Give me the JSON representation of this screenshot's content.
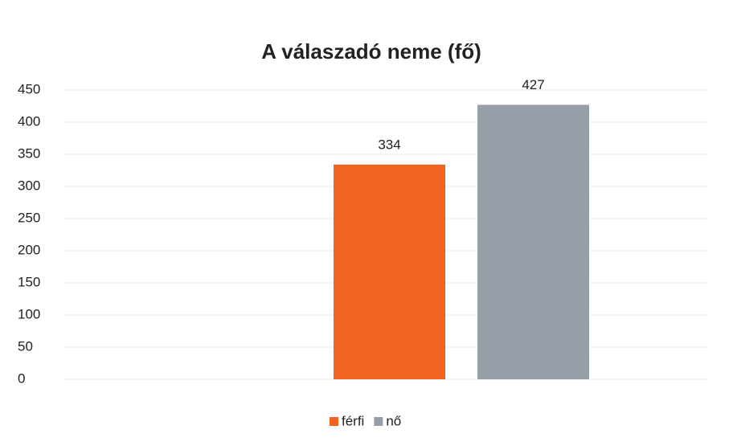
{
  "chart_data": {
    "type": "bar",
    "title": "A válaszadó neme (fő)",
    "categories": [
      null
    ],
    "series": [
      {
        "name": "férfi",
        "color": "#f26322",
        "values": [
          334
        ]
      },
      {
        "name": "nő",
        "color": "#969fa7",
        "values": [
          427
        ]
      }
    ],
    "ylim": [
      0,
      450
    ],
    "yticks": [
      0,
      50,
      100,
      150,
      200,
      250,
      300,
      350,
      400,
      450
    ],
    "grid": true,
    "legend": "bottom"
  }
}
